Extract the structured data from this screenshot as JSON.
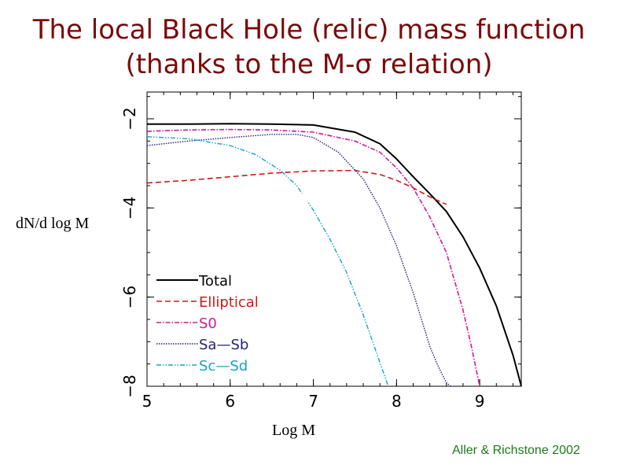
{
  "slide": {
    "title_line1": "The local Black Hole (relic) mass function",
    "title_line2": "(thanks to the M-σ relation)",
    "credit": "Aller & Richstone 2002"
  },
  "chart_data": {
    "type": "line",
    "xlabel": "Log M",
    "ylabel": "dN/d log M",
    "xlim": [
      5,
      9.5
    ],
    "ylim": [
      -8,
      -1.4
    ],
    "xticks": [
      5,
      6,
      7,
      8,
      9
    ],
    "yticks": [
      -2,
      -4,
      -6,
      -8
    ],
    "grid": false,
    "legend_position": "lower-left",
    "series": [
      {
        "name": "Total",
        "color": "#000000",
        "dash": "solid",
        "width": 2,
        "x": [
          5.0,
          5.5,
          6.0,
          6.5,
          7.0,
          7.5,
          7.8,
          8.0,
          8.2,
          8.4,
          8.6,
          8.8,
          9.0,
          9.2,
          9.4,
          9.5
        ],
        "y": [
          -2.12,
          -2.12,
          -2.11,
          -2.12,
          -2.14,
          -2.3,
          -2.56,
          -2.9,
          -3.3,
          -3.68,
          -4.08,
          -4.65,
          -5.35,
          -6.2,
          -7.3,
          -8.0
        ]
      },
      {
        "name": "Elliptical",
        "color": "#cc1a1a",
        "dash": "7,4",
        "width": 1.6,
        "x": [
          5.0,
          5.5,
          6.0,
          6.5,
          7.0,
          7.5,
          7.8,
          8.0,
          8.2,
          8.4,
          8.6
        ],
        "y": [
          -3.44,
          -3.38,
          -3.3,
          -3.22,
          -3.17,
          -3.16,
          -3.25,
          -3.38,
          -3.55,
          -3.75,
          -3.92
        ]
      },
      {
        "name": "S0",
        "color": "#cc1a99",
        "dash": "6,2,1.5,2",
        "width": 1.6,
        "x": [
          5.0,
          5.5,
          6.0,
          6.5,
          7.0,
          7.5,
          7.8,
          8.0,
          8.2,
          8.4,
          8.6,
          8.8,
          8.9,
          9.0
        ],
        "y": [
          -2.28,
          -2.25,
          -2.24,
          -2.25,
          -2.3,
          -2.5,
          -2.75,
          -3.1,
          -3.55,
          -4.2,
          -5.0,
          -6.3,
          -7.1,
          -8.0
        ]
      },
      {
        "name": "Sa—Sb",
        "color": "#22227a",
        "dash": "1.5,1.5",
        "width": 1.4,
        "x": [
          5.0,
          5.5,
          6.0,
          6.5,
          6.8,
          7.0,
          7.3,
          7.6,
          7.8,
          8.0,
          8.2,
          8.4,
          8.5,
          8.6,
          8.65
        ],
        "y": [
          -2.6,
          -2.5,
          -2.42,
          -2.35,
          -2.35,
          -2.42,
          -2.75,
          -3.35,
          -4.0,
          -4.85,
          -5.9,
          -7.1,
          -7.55,
          -7.92,
          -8.0
        ]
      },
      {
        "name": "Sc—Sd",
        "color": "#1aa0c8",
        "dash": "6,2,1.5,2,1.5,2",
        "width": 1.4,
        "x": [
          5.0,
          5.5,
          6.0,
          6.3,
          6.6,
          6.8,
          7.0,
          7.2,
          7.4,
          7.6,
          7.75,
          7.9
        ],
        "y": [
          -2.4,
          -2.45,
          -2.6,
          -2.8,
          -3.15,
          -3.5,
          -4.05,
          -4.7,
          -5.45,
          -6.4,
          -7.2,
          -8.0
        ]
      }
    ]
  }
}
